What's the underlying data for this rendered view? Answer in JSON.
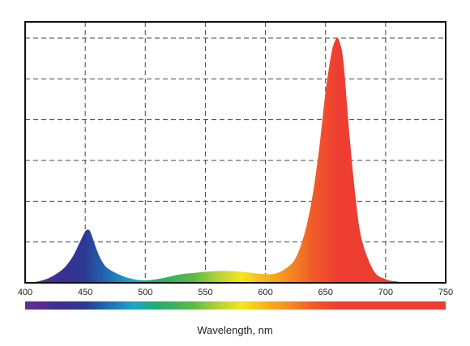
{
  "chart_data": {
    "type": "area",
    "title": "",
    "xlabel": "Wavelength, nm",
    "ylabel": "",
    "xlim": [
      400,
      750
    ],
    "ylim": [
      0,
      1.0
    ],
    "x_ticks": [
      400,
      450,
      500,
      550,
      600,
      650,
      700,
      750
    ],
    "grid": true,
    "grid_style": "dashed",
    "legend": "none",
    "colorbar": "visible spectrum 400–750 nm below x-axis",
    "series": [
      {
        "x": [
          400,
          410,
          420,
          430,
          435,
          440,
          445,
          450,
          453,
          455,
          460,
          465,
          470,
          480,
          490,
          500,
          510,
          520,
          530,
          540,
          550,
          560,
          570,
          580,
          590,
          600,
          610,
          620,
          625,
          630,
          635,
          640,
          645,
          650,
          655,
          658,
          660,
          662,
          665,
          670,
          675,
          680,
          690,
          700,
          710,
          720,
          750
        ],
        "values": [
          0.0,
          0.005,
          0.02,
          0.05,
          0.075,
          0.11,
          0.16,
          0.21,
          0.216,
          0.2,
          0.13,
          0.08,
          0.055,
          0.03,
          0.015,
          0.01,
          0.015,
          0.025,
          0.035,
          0.04,
          0.045,
          0.048,
          0.048,
          0.045,
          0.04,
          0.035,
          0.04,
          0.07,
          0.1,
          0.16,
          0.25,
          0.38,
          0.56,
          0.78,
          0.94,
          0.99,
          1.0,
          0.98,
          0.9,
          0.6,
          0.35,
          0.18,
          0.05,
          0.015,
          0.005,
          0.0,
          0.0
        ]
      }
    ],
    "spectrum_colors": [
      {
        "nm": 400,
        "color": "#6a2c91"
      },
      {
        "nm": 430,
        "color": "#3a2f8f"
      },
      {
        "nm": 450,
        "color": "#2b3a93"
      },
      {
        "nm": 470,
        "color": "#1e6fb8"
      },
      {
        "nm": 490,
        "color": "#1aa6c8"
      },
      {
        "nm": 510,
        "color": "#1fae6a"
      },
      {
        "nm": 540,
        "color": "#5cb947"
      },
      {
        "nm": 560,
        "color": "#b3d234"
      },
      {
        "nm": 580,
        "color": "#f2e71b"
      },
      {
        "nm": 600,
        "color": "#f7b41c"
      },
      {
        "nm": 620,
        "color": "#f58a22"
      },
      {
        "nm": 640,
        "color": "#f05a28"
      },
      {
        "nm": 660,
        "color": "#ee3d31"
      },
      {
        "nm": 750,
        "color": "#ee3d31"
      }
    ]
  }
}
